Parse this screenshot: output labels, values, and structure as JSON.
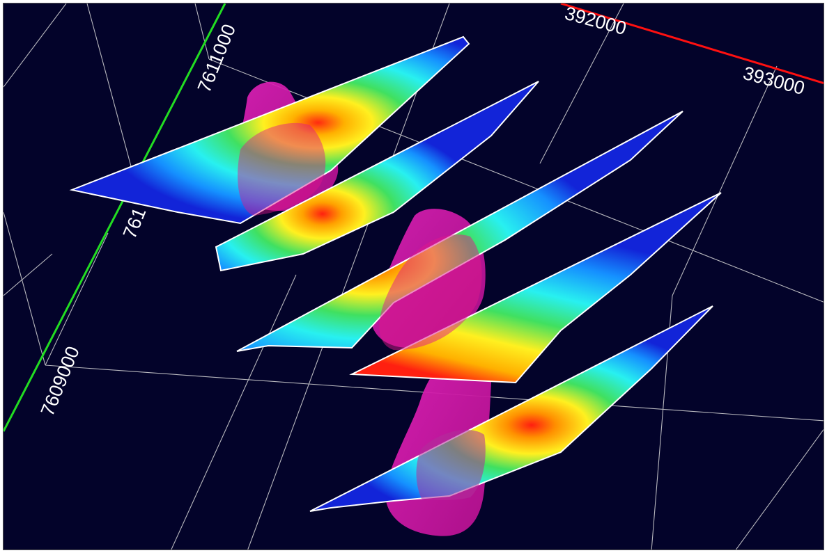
{
  "scene": {
    "background_color": "#03032a",
    "grid_color": "#d8d8d8",
    "easting_axis_color": "#ff1010",
    "northing_axis_color": "#22dd22",
    "section_colormap": [
      "#0a1fd0",
      "#12a0ff",
      "#28f0f0",
      "#30e060",
      "#fff020",
      "#ff9000",
      "#ff1010"
    ],
    "anomaly_body_color": "#d01aa8",
    "section_count": 5,
    "anomaly_body_count": 3
  },
  "axes": {
    "easting_labels": [
      "392000",
      "393000"
    ],
    "northing_labels": [
      "7611000",
      "761",
      "7609000"
    ]
  }
}
